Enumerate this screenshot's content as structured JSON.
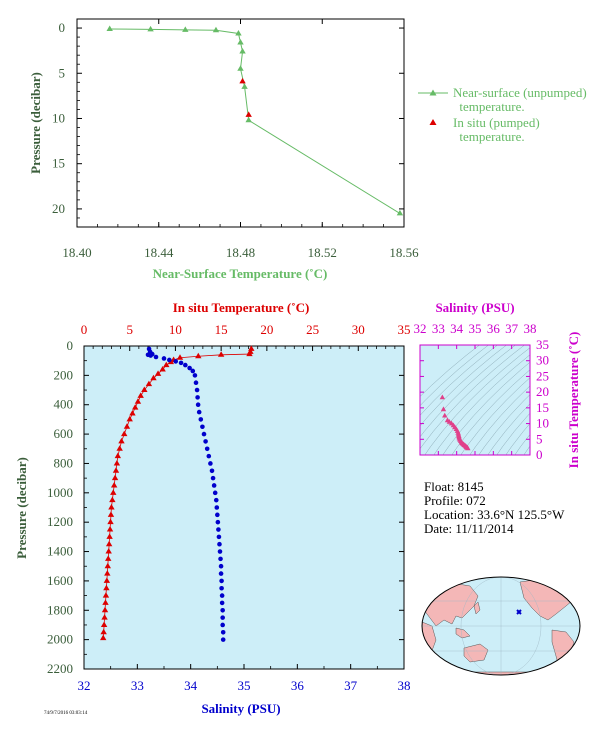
{
  "colors": {
    "axis_green": "#3b5e3b",
    "series_green": "#66bb66",
    "temp_red": "#dd0000",
    "salinity_blue": "#0000cc",
    "magenta": "#cc00cc",
    "plot_bg": "#cdeef8",
    "land": "#f4b7b7"
  },
  "float_info": {
    "float": "Float:  8145",
    "profile": "Profile:  072",
    "location": "Location:  33.6°N  125.5°W",
    "date": "Date:  11/11/2014"
  },
  "footer_code": "74/9/7/2016 03:03:14",
  "chart_data": [
    {
      "type": "line",
      "title": "",
      "xlabel": "Near-Surface Temperature (˚C)",
      "ylabel": "Pressure (decibar)",
      "xlim": [
        18.4,
        18.56
      ],
      "ylim": [
        22,
        -1
      ],
      "xticks": [
        {
          "v": 18.4,
          "label": "18.40"
        },
        {
          "v": 18.44,
          "label": "18.44"
        },
        {
          "v": 18.48,
          "label": "18.48"
        },
        {
          "v": 18.52,
          "label": "18.52"
        },
        {
          "v": 18.56,
          "label": "18.56"
        }
      ],
      "yticks": [
        {
          "v": 0,
          "label": "0"
        },
        {
          "v": 5,
          "label": "5"
        },
        {
          "v": 10,
          "label": "10"
        },
        {
          "v": 15,
          "label": "15"
        },
        {
          "v": 20,
          "label": "20"
        }
      ],
      "legend_position": "right",
      "series": [
        {
          "name": "Near-surface (unpumped) temperature.",
          "legend_lines": [
            "Near-surface (unpumped)",
            "temperature."
          ],
          "points": [
            [
              18.416,
              0.1
            ],
            [
              18.436,
              0.15
            ],
            [
              18.453,
              0.2
            ],
            [
              18.468,
              0.25
            ],
            [
              18.479,
              0.6
            ],
            [
              18.48,
              1.6
            ],
            [
              18.481,
              2.6
            ],
            [
              18.48,
              4.5
            ],
            [
              18.482,
              6.5
            ],
            [
              18.484,
              10.2
            ],
            [
              18.558,
              20.5
            ]
          ]
        },
        {
          "name": "In situ (pumped) temperature.",
          "legend_lines": [
            "In situ (pumped)",
            "temperature."
          ],
          "points": [
            [
              18.481,
              5.9
            ],
            [
              18.484,
              9.6
            ]
          ]
        }
      ]
    },
    {
      "type": "line",
      "title": "",
      "xlabel": "Salinity (PSU)",
      "x2label": "In situ Temperature (˚C)",
      "ylabel": "Pressure (decibar)",
      "salinity_lim": [
        32,
        38
      ],
      "temperature_lim": [
        0,
        35
      ],
      "ylim": [
        2200,
        0
      ],
      "salinity_ticks": [
        "32",
        "33",
        "34",
        "35",
        "36",
        "37",
        "38"
      ],
      "temperature_ticks": [
        "0",
        "5",
        "10",
        "15",
        "20",
        "25",
        "30",
        "35"
      ],
      "yticks": [
        "0",
        "200",
        "400",
        "600",
        "800",
        "1000",
        "1200",
        "1400",
        "1600",
        "1800",
        "2000",
        "2200"
      ],
      "series": [
        {
          "name": "In situ Temperature (˚C)",
          "points": [
            [
              18.3,
              20
            ],
            [
              18.2,
              40
            ],
            [
              18.1,
              55
            ],
            [
              15.0,
              60
            ],
            [
              12.5,
              70
            ],
            [
              10.5,
              80
            ],
            [
              9.8,
              95
            ],
            [
              9.5,
              110
            ],
            [
              9.0,
              130
            ],
            [
              8.6,
              160
            ],
            [
              8.1,
              190
            ],
            [
              7.6,
              220
            ],
            [
              7.1,
              260
            ],
            [
              6.6,
              300
            ],
            [
              6.2,
              340
            ],
            [
              5.9,
              380
            ],
            [
              5.6,
              420
            ],
            [
              5.3,
              460
            ],
            [
              5.0,
              500
            ],
            [
              4.7,
              550
            ],
            [
              4.4,
              600
            ],
            [
              4.1,
              650
            ],
            [
              3.9,
              700
            ],
            [
              3.7,
              750
            ],
            [
              3.6,
              800
            ],
            [
              3.5,
              850
            ],
            [
              3.4,
              900
            ],
            [
              3.3,
              950
            ],
            [
              3.2,
              1000
            ],
            [
              3.1,
              1050
            ],
            [
              3.0,
              1100
            ],
            [
              2.95,
              1150
            ],
            [
              2.9,
              1200
            ],
            [
              2.85,
              1250
            ],
            [
              2.8,
              1300
            ],
            [
              2.75,
              1350
            ],
            [
              2.7,
              1400
            ],
            [
              2.65,
              1450
            ],
            [
              2.6,
              1500
            ],
            [
              2.55,
              1550
            ],
            [
              2.5,
              1600
            ],
            [
              2.45,
              1650
            ],
            [
              2.4,
              1700
            ],
            [
              2.35,
              1750
            ],
            [
              2.3,
              1800
            ],
            [
              2.25,
              1850
            ],
            [
              2.2,
              1900
            ],
            [
              2.15,
              1950
            ],
            [
              2.1,
              1990
            ]
          ]
        },
        {
          "name": "Salinity (PSU)",
          "points": [
            [
              33.22,
              20
            ],
            [
              33.24,
              40
            ],
            [
              33.28,
              55
            ],
            [
              33.2,
              60
            ],
            [
              33.25,
              65
            ],
            [
              33.35,
              75
            ],
            [
              33.5,
              85
            ],
            [
              33.6,
              95
            ],
            [
              33.72,
              105
            ],
            [
              33.82,
              115
            ],
            [
              33.9,
              130
            ],
            [
              33.98,
              150
            ],
            [
              34.04,
              170
            ],
            [
              34.08,
              200
            ],
            [
              34.1,
              250
            ],
            [
              34.12,
              300
            ],
            [
              34.13,
              350
            ],
            [
              34.14,
              400
            ],
            [
              34.16,
              450
            ],
            [
              34.19,
              500
            ],
            [
              34.22,
              550
            ],
            [
              34.25,
              600
            ],
            [
              34.28,
              650
            ],
            [
              34.31,
              700
            ],
            [
              34.34,
              750
            ],
            [
              34.37,
              800
            ],
            [
              34.4,
              850
            ],
            [
              34.42,
              900
            ],
            [
              34.44,
              950
            ],
            [
              34.46,
              1000
            ],
            [
              34.48,
              1050
            ],
            [
              34.49,
              1100
            ],
            [
              34.5,
              1150
            ],
            [
              34.51,
              1200
            ],
            [
              34.52,
              1250
            ],
            [
              34.53,
              1300
            ],
            [
              34.54,
              1350
            ],
            [
              34.55,
              1400
            ],
            [
              34.56,
              1450
            ],
            [
              34.57,
              1500
            ],
            [
              34.57,
              1550
            ],
            [
              34.58,
              1600
            ],
            [
              34.58,
              1650
            ],
            [
              34.59,
              1700
            ],
            [
              34.59,
              1750
            ],
            [
              34.6,
              1800
            ],
            [
              34.6,
              1850
            ],
            [
              34.6,
              1900
            ],
            [
              34.61,
              1950
            ],
            [
              34.61,
              2000
            ]
          ]
        }
      ]
    },
    {
      "type": "scatter",
      "title": "",
      "xlabel": "Salinity (PSU)",
      "ylabel": "In situ Temperature (˚C)",
      "xlim": [
        32,
        38
      ],
      "ylim": [
        0,
        35
      ],
      "xticks": [
        "32",
        "33",
        "34",
        "35",
        "36",
        "37",
        "38"
      ],
      "yticks": [
        "0",
        "5",
        "10",
        "15",
        "20",
        "25",
        "30",
        "35"
      ],
      "points": [
        [
          33.22,
          18.3
        ],
        [
          33.28,
          14.5
        ],
        [
          33.35,
          12.5
        ],
        [
          33.5,
          11.0
        ],
        [
          33.6,
          10.5
        ],
        [
          33.72,
          10.0
        ],
        [
          33.82,
          9.4
        ],
        [
          33.9,
          8.8
        ],
        [
          33.98,
          8.2
        ],
        [
          34.04,
          7.6
        ],
        [
          34.08,
          7.0
        ],
        [
          34.1,
          6.5
        ],
        [
          34.12,
          6.0
        ],
        [
          34.13,
          5.6
        ],
        [
          34.15,
          5.2
        ],
        [
          34.18,
          4.8
        ],
        [
          34.22,
          4.4
        ],
        [
          34.26,
          4.0
        ],
        [
          34.3,
          3.7
        ],
        [
          34.34,
          3.5
        ],
        [
          34.38,
          3.3
        ],
        [
          34.42,
          3.1
        ],
        [
          34.46,
          2.9
        ],
        [
          34.5,
          2.7
        ],
        [
          34.54,
          2.5
        ],
        [
          34.58,
          2.3
        ],
        [
          34.61,
          2.1
        ]
      ]
    },
    {
      "type": "map",
      "title": "",
      "marker": {
        "lat": 33.6,
        "lon": -125.5
      }
    }
  ]
}
